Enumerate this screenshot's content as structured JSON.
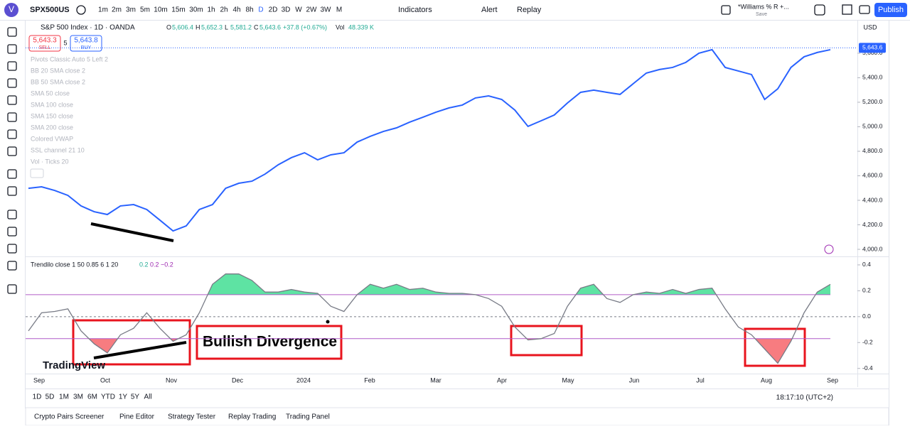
{
  "toolbar": {
    "symbol": "SPX500US",
    "intervals": [
      "1m",
      "2m",
      "3m",
      "5m",
      "10m",
      "15m",
      "30m",
      "1h",
      "2h",
      "4h",
      "8h",
      "D",
      "2D",
      "3D",
      "W",
      "2W",
      "3W",
      "M"
    ],
    "selected": "D",
    "indicators": "Indicators",
    "alert": "Alert",
    "replay": "Replay",
    "layout": "*Williams % R +...",
    "save": "Save",
    "publish": "Publish"
  },
  "legend": {
    "title": "S&P 500 Index · 1D · OANDA",
    "ohlc": [
      [
        "O",
        "5,606.4"
      ],
      [
        "H",
        "5,652.3"
      ],
      [
        "L",
        "5,581.2"
      ],
      [
        "C",
        "5,643.6"
      ]
    ],
    "change": "+37.8 (+0.67%)",
    "vol_label": "Vol",
    "vol": "48.339 K",
    "sell_price": "5,643.3",
    "sell": "SELL",
    "spread": "5",
    "buy_price": "5,643.8",
    "buy": "BUY",
    "studies": [
      "Pivots Classic Auto 5 Left 2",
      "BB 20 SMA close 2",
      "BB 50 SMA close 2",
      "SMA 50 close",
      "SMA 100 close",
      "SMA 150 close",
      "SMA 200 close",
      "Colored VWAP",
      "SSL channel 21 10",
      "Vol · Ticks 20"
    ]
  },
  "chart_data": [
    {
      "type": "line",
      "currency": "USD",
      "color": "#2962ff",
      "values": [
        4498,
        4510,
        4480,
        4440,
        4354,
        4307,
        4284,
        4354,
        4365,
        4325,
        4238,
        4150,
        4191,
        4325,
        4365,
        4498,
        4539,
        4556,
        4614,
        4690,
        4748,
        4788,
        4730,
        4771,
        4788,
        4875,
        4922,
        4962,
        4991,
        5038,
        5078,
        5119,
        5154,
        5177,
        5235,
        5252,
        5223,
        5136,
        5003,
        5049,
        5096,
        5194,
        5281,
        5299,
        5281,
        5264,
        5351,
        5438,
        5467,
        5484,
        5525,
        5600,
        5629,
        5484,
        5455,
        5426,
        5223,
        5310,
        5484,
        5571,
        5606,
        5629
      ],
      "ylim": [
        3948,
        5872
      ],
      "yticks": [
        {
          "value": 4000,
          "label": "4,000.0"
        },
        {
          "value": 4200,
          "label": "4,200.0"
        },
        {
          "value": 4400,
          "label": "4,400.0"
        },
        {
          "value": 4600,
          "label": "4,600.0"
        },
        {
          "value": 4800,
          "label": "4,800.0"
        },
        {
          "value": 5000,
          "label": "5,000.0"
        },
        {
          "value": 5200,
          "label": "5,200.0"
        },
        {
          "value": 5400,
          "label": "5,400.0"
        },
        {
          "value": 5600,
          "label": "5,600.0"
        }
      ],
      "last": {
        "value": 5643.6,
        "label": "5,643.6"
      },
      "grid": false
    },
    {
      "type": "line",
      "title": "Trendilo close 1 50 0.85 6 1 20",
      "level_labels": [
        "0.2",
        "0.2",
        "−0.2"
      ],
      "color": "#787b86",
      "band_color": "#b05cc8",
      "upper_band": 0.17,
      "lower_band": -0.17,
      "up_fill": "#5ee3a3",
      "down_fill": "#f77c80",
      "values": [
        -0.11,
        0.03,
        0.04,
        0.06,
        -0.11,
        -0.21,
        -0.28,
        -0.14,
        -0.09,
        0.03,
        -0.09,
        -0.19,
        -0.14,
        0.03,
        0.25,
        0.33,
        0.33,
        0.28,
        0.19,
        0.19,
        0.21,
        0.19,
        0.18,
        0.08,
        0.04,
        0.17,
        0.25,
        0.22,
        0.25,
        0.21,
        0.22,
        0.19,
        0.18,
        0.18,
        0.17,
        0.14,
        0.08,
        -0.08,
        -0.18,
        -0.17,
        -0.13,
        0.08,
        0.22,
        0.25,
        0.14,
        0.11,
        0.17,
        0.19,
        0.18,
        0.21,
        0.18,
        0.21,
        0.22,
        0.06,
        -0.08,
        -0.14,
        -0.25,
        -0.36,
        -0.19,
        0.03,
        0.19,
        0.25
      ],
      "ylim": [
        -0.44,
        0.46
      ],
      "yticks": [
        0.4,
        0.2,
        {
          "value": 0,
          "label": "0.0"
        },
        -0.2,
        -0.4
      ]
    }
  ],
  "time_axis": [
    "Sep",
    "Oct",
    "Nov",
    "Dec",
    "2024",
    "Feb",
    "Mar",
    "Apr",
    "May",
    "Jun",
    "Jul",
    "Aug",
    "Sep"
  ],
  "annotation": "Bullish Divergence",
  "brand": "TradingView",
  "ranges": [
    "1D",
    "5D",
    "1M",
    "3M",
    "6M",
    "YTD",
    "1Y",
    "5Y",
    "All"
  ],
  "clock": "18:17:10 (UTC+2)",
  "tabs": [
    "Crypto Pairs Screener",
    "Pine Editor",
    "Strategy Tester",
    "Replay Trading",
    "Trading Panel"
  ]
}
